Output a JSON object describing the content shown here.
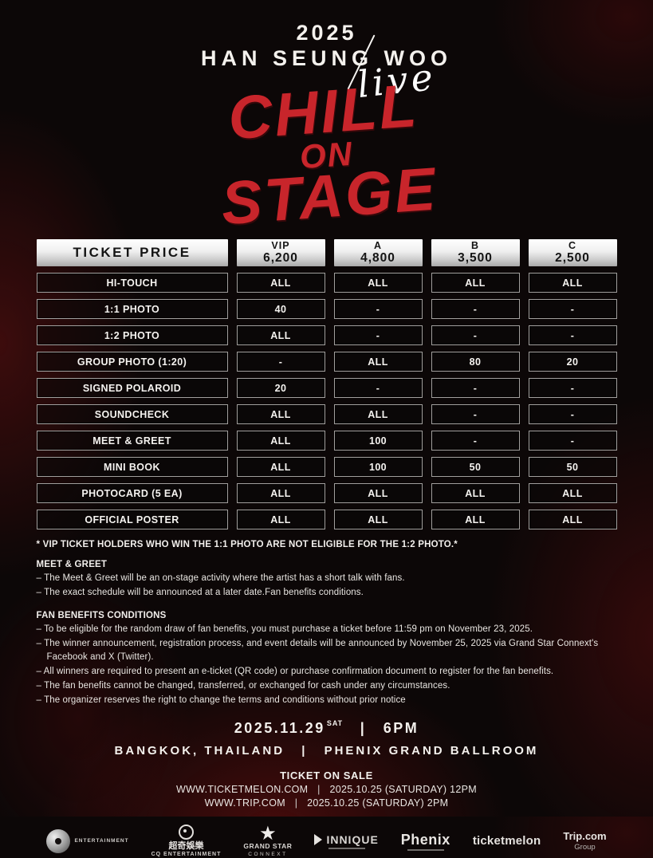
{
  "header": {
    "year": "2025",
    "artist": "HAN SEUNG WOO",
    "script": "live",
    "title_line1": "CHILL",
    "title_line2": "ON",
    "title_line3": "STAGE",
    "title_color": "#c8252b"
  },
  "table": {
    "corner_label": "TICKET PRICE",
    "tiers": [
      {
        "name": "VIP",
        "price": "6,200"
      },
      {
        "name": "A",
        "price": "4,800"
      },
      {
        "name": "B",
        "price": "3,500"
      },
      {
        "name": "C",
        "price": "2,500"
      }
    ],
    "rows": [
      {
        "label": "HI-TOUCH",
        "values": [
          "ALL",
          "ALL",
          "ALL",
          "ALL"
        ]
      },
      {
        "label": "1:1 PHOTO",
        "values": [
          "40",
          "-",
          "-",
          "-"
        ]
      },
      {
        "label": "1:2 PHOTO",
        "values": [
          "ALL",
          "-",
          "-",
          "-"
        ]
      },
      {
        "label": "GROUP PHOTO (1:20)",
        "values": [
          "-",
          "ALL",
          "80",
          "20"
        ]
      },
      {
        "label": "SIGNED POLAROID",
        "values": [
          "20",
          "-",
          "-",
          "-"
        ]
      },
      {
        "label": "SOUNDCHECK",
        "values": [
          "ALL",
          "ALL",
          "-",
          "-"
        ]
      },
      {
        "label": "MEET & GREET",
        "values": [
          "ALL",
          "100",
          "-",
          "-"
        ]
      },
      {
        "label": "MINI BOOK",
        "values": [
          "ALL",
          "100",
          "50",
          "50"
        ]
      },
      {
        "label": "PHOTOCARD (5 EA)",
        "values": [
          "ALL",
          "ALL",
          "ALL",
          "ALL"
        ]
      },
      {
        "label": "OFFICIAL POSTER",
        "values": [
          "ALL",
          "ALL",
          "ALL",
          "ALL"
        ]
      }
    ]
  },
  "notes": {
    "vip_note": "* VIP TICKET HOLDERS WHO WIN THE 1:1 PHOTO ARE NOT ELIGIBLE FOR THE 1:2 PHOTO.*",
    "meet_greet": {
      "heading": "MEET & GREET",
      "items": [
        "– The Meet & Greet will be an on-stage activity where the artist has a short talk with fans.",
        "– The exact schedule will be announced at a later date.Fan benefits conditions."
      ]
    },
    "fan_benefits": {
      "heading": "FAN BENEFITS CONDITIONS",
      "items": [
        "– To be eligible for the random draw of fan benefits, you must purchase a ticket before 11:59 pm on November 23, 2025.",
        "– The winner announcement, registration process, and event details will be announced by November 25, 2025 via Grand Star Connext's Facebook and X (Twitter).",
        "– All winners are required to present an e-ticket (QR code) or purchase confirmation document to register for the fan benefits.",
        "– The fan benefits cannot be changed, transferred, or exchanged for cash under any circumstances.",
        "– The organizer reserves the right to change the terms and conditions without prior notice"
      ]
    }
  },
  "event": {
    "date": "2025.11.29",
    "day": "SAT",
    "sep": "|",
    "time": "6PM",
    "city": "BANGKOK, THAILAND",
    "venue": "PHENIX GRAND BALLROOM"
  },
  "sale": {
    "heading": "TICKET ON SALE",
    "lines": [
      {
        "site": "WWW.TICKETMELON.COM",
        "sep": "|",
        "when": "2025.10.25 (SATURDAY) 12PM"
      },
      {
        "site": "WWW.TRIP.COM",
        "sep": "|",
        "when": "2025.10.25 (SATURDAY) 2PM"
      }
    ]
  },
  "sponsors": {
    "s1": {
      "label": "ENTERTAINMENT"
    },
    "s2": {
      "cn": "超奇娛樂",
      "en": "CQ ENTERTAINMENT"
    },
    "s3": {
      "line1": "GRAND STAR",
      "line2": "CONNEXT"
    },
    "s4": {
      "label": "INNIQUE"
    },
    "s5": {
      "label": "Phenix"
    },
    "s6": {
      "label": "ticketmelon"
    },
    "s7": {
      "line1": "Trip.com",
      "line2": "Group"
    }
  }
}
